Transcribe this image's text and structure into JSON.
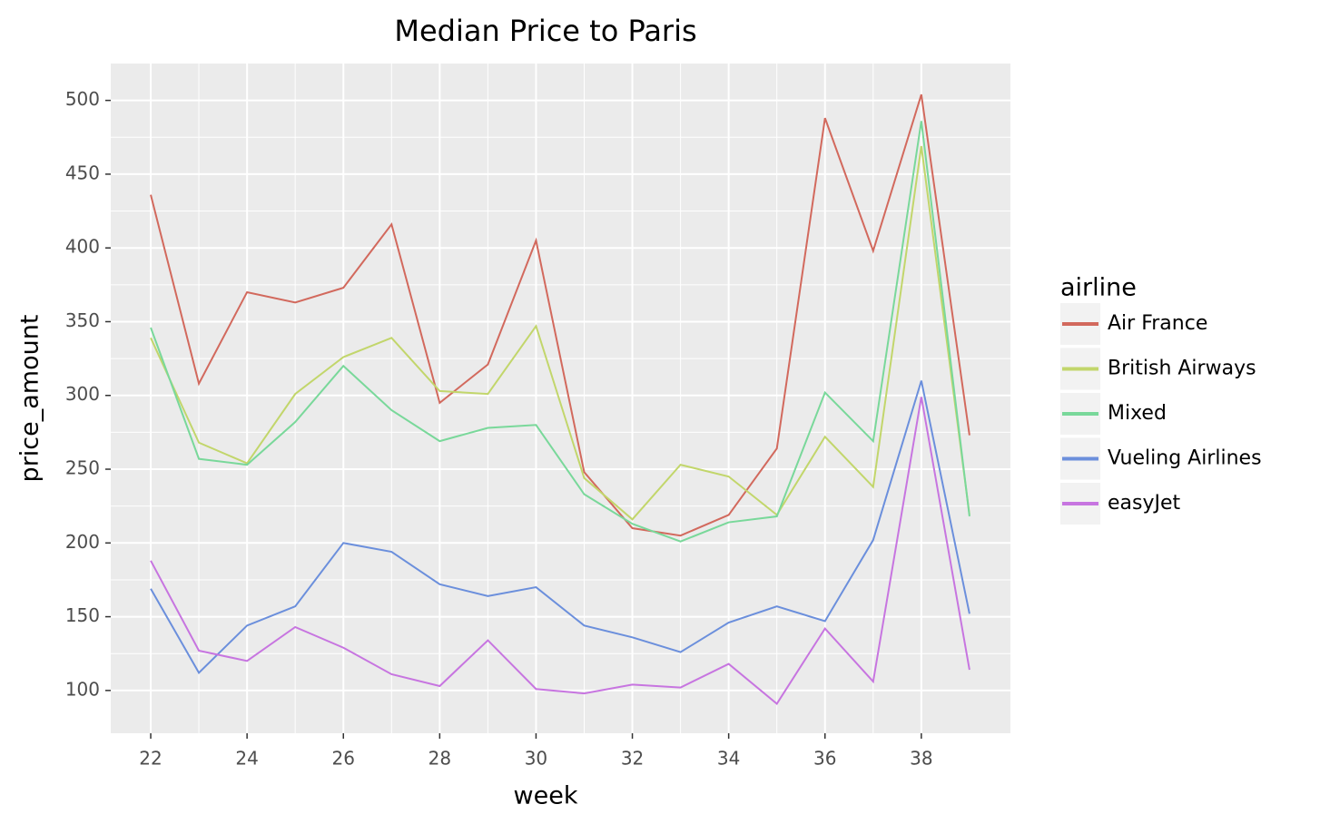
{
  "chart_data": {
    "type": "line",
    "title": "Median Price to Paris",
    "x_label": "week",
    "y_label": "price_amount",
    "legend_title": "airline",
    "x": [
      22,
      23,
      24,
      25,
      26,
      27,
      28,
      29,
      30,
      31,
      32,
      33,
      34,
      35,
      36,
      37,
      38,
      39
    ],
    "series": [
      {
        "name": "Air France",
        "color": "#d2695d",
        "values": [
          436,
          308,
          370,
          363,
          373,
          416,
          295,
          321,
          405,
          248,
          210,
          205,
          219,
          264,
          488,
          398,
          504,
          273
        ]
      },
      {
        "name": "British Airways",
        "color": "#c2d66b",
        "values": [
          339,
          268,
          254,
          301,
          326,
          339,
          303,
          301,
          347,
          244,
          216,
          253,
          245,
          219,
          272,
          238,
          469,
          219
        ]
      },
      {
        "name": "Mixed",
        "color": "#79d89a",
        "values": [
          346,
          257,
          253,
          282,
          320,
          290,
          269,
          278,
          280,
          233,
          213,
          201,
          214,
          218,
          302,
          269,
          486,
          218
        ]
      },
      {
        "name": "Vueling Airlines",
        "color": "#6b8fdc",
        "values": [
          169,
          112,
          144,
          157,
          200,
          194,
          172,
          164,
          170,
          144,
          136,
          126,
          146,
          157,
          147,
          202,
          310,
          152
        ]
      },
      {
        "name": "easyJet",
        "color": "#c775e0",
        "values": [
          188,
          127,
          120,
          143,
          129,
          111,
          103,
          134,
          101,
          98,
          104,
          102,
          118,
          91,
          142,
          106,
          299,
          114
        ]
      }
    ],
    "xlim": [
      21.17,
      39.85
    ],
    "ylim": [
      71,
      525
    ],
    "xticks": [
      22,
      24,
      26,
      28,
      30,
      32,
      34,
      36,
      38
    ],
    "yticks": [
      100,
      150,
      200,
      250,
      300,
      350,
      400,
      450,
      500
    ],
    "grid": true,
    "legend_position": "right"
  }
}
